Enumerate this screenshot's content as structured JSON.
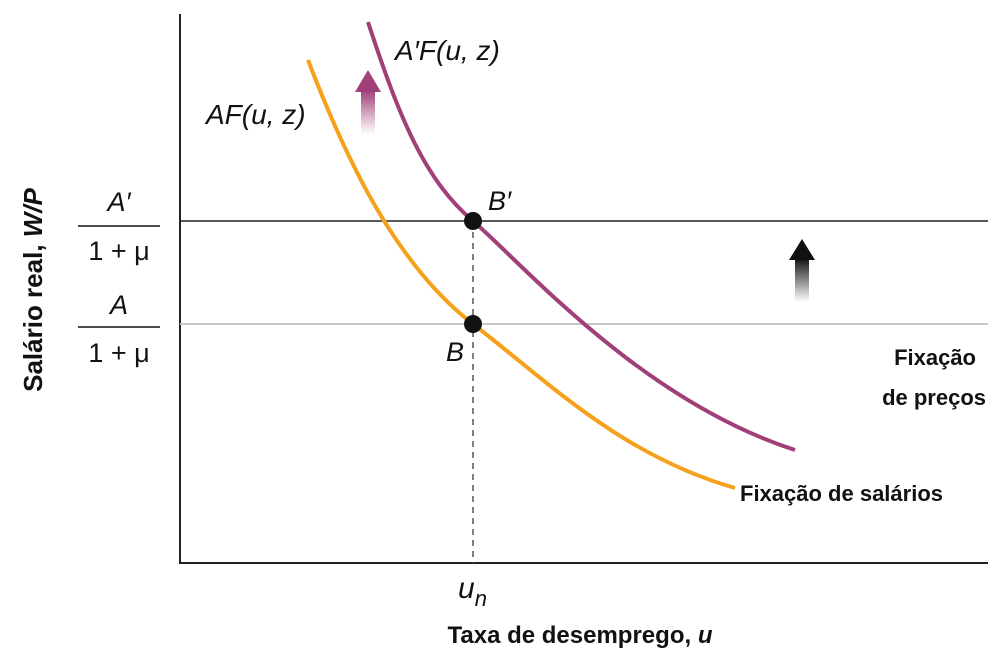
{
  "axes": {
    "ylabel_text": "Salário real, ",
    "ylabel_var": "W/P",
    "xlabel_text": "Taxa de desemprego, ",
    "xlabel_var": "u"
  },
  "levels": {
    "upper": {
      "num": "A′",
      "den": "1 + μ"
    },
    "lower": {
      "num": "A",
      "den": "1 + μ"
    }
  },
  "curves": {
    "original": {
      "label": "AF(u, z)",
      "color": "#f5a11c"
    },
    "shifted": {
      "label": "A′F(u, z)",
      "color": "#a03f78"
    }
  },
  "points": {
    "lower": "B",
    "upper": "B′"
  },
  "x_tick": {
    "base": "u",
    "sub": "n"
  },
  "annotations": {
    "price_setting_line1": "Fixação",
    "price_setting_line2": "de preços",
    "wage_setting": "Fixação de salários"
  },
  "colors": {
    "axis": "#222222",
    "upper_line": "#222222",
    "lower_line": "#c8c8c8",
    "arrow_up_curve": "#a03f78",
    "arrow_up_price": "#111111"
  }
}
